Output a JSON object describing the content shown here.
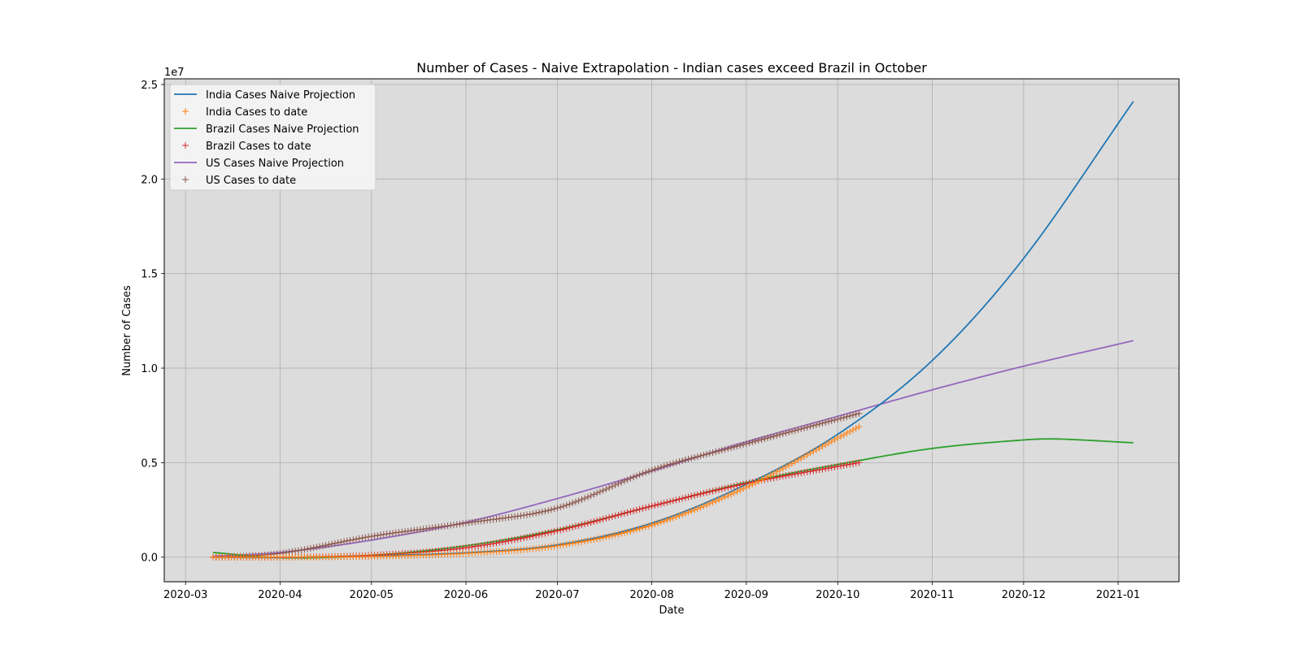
{
  "chart_data": {
    "type": "line",
    "title": "Number of Cases - Naive Extrapolation - Indian cases exceed Brazil in October",
    "xlabel": "Date",
    "ylabel": "Number of Cases",
    "y_offset_text": "1e7",
    "xlim": [
      "2020-02-23",
      "2021-01-21"
    ],
    "ylim": [
      -0.13,
      2.53
    ],
    "x_ticks": [
      {
        "date": "2020-03-01",
        "label": "2020-03"
      },
      {
        "date": "2020-04-01",
        "label": "2020-04"
      },
      {
        "date": "2020-05-01",
        "label": "2020-05"
      },
      {
        "date": "2020-06-01",
        "label": "2020-06"
      },
      {
        "date": "2020-07-01",
        "label": "2020-07"
      },
      {
        "date": "2020-08-01",
        "label": "2020-08"
      },
      {
        "date": "2020-09-01",
        "label": "2020-09"
      },
      {
        "date": "2020-10-01",
        "label": "2020-10"
      },
      {
        "date": "2020-11-01",
        "label": "2020-11"
      },
      {
        "date": "2020-12-01",
        "label": "2020-12"
      },
      {
        "date": "2021-01-01",
        "label": "2021-01"
      }
    ],
    "y_ticks": [
      {
        "value": 0.0,
        "label": "0.0"
      },
      {
        "value": 0.5,
        "label": "0.5"
      },
      {
        "value": 1.0,
        "label": "1.0"
      },
      {
        "value": 1.5,
        "label": "1.5"
      },
      {
        "value": 2.0,
        "label": "2.0"
      },
      {
        "value": 2.5,
        "label": "2.5"
      }
    ],
    "grid": true,
    "legend_position": "top-left",
    "background_color": "#dcdcdc",
    "series": [
      {
        "name": "India Cases Naive Projection",
        "kind": "line",
        "color": "#1f77b4",
        "points": [
          {
            "x": "2020-03-10",
            "y": 0.0
          },
          {
            "x": "2020-04-01",
            "y": -0.002
          },
          {
            "x": "2020-05-01",
            "y": 0.008
          },
          {
            "x": "2020-06-01",
            "y": 0.023
          },
          {
            "x": "2020-07-01",
            "y": 0.065
          },
          {
            "x": "2020-08-01",
            "y": 0.18
          },
          {
            "x": "2020-09-01",
            "y": 0.385
          },
          {
            "x": "2020-10-01",
            "y": 0.65
          },
          {
            "x": "2020-11-01",
            "y": 1.04
          },
          {
            "x": "2020-12-01",
            "y": 1.58
          },
          {
            "x": "2021-01-06",
            "y": 2.41
          }
        ]
      },
      {
        "name": "India Cases to date",
        "kind": "markers",
        "color": "#ff7f0e",
        "points": [
          {
            "x": "2020-03-10",
            "y": 0.0
          },
          {
            "x": "2020-04-01",
            "y": 0.0
          },
          {
            "x": "2020-05-01",
            "y": 0.004
          },
          {
            "x": "2020-06-01",
            "y": 0.02
          },
          {
            "x": "2020-07-01",
            "y": 0.06
          },
          {
            "x": "2020-08-01",
            "y": 0.17
          },
          {
            "x": "2020-09-01",
            "y": 0.37
          },
          {
            "x": "2020-10-01",
            "y": 0.63
          },
          {
            "x": "2020-10-08",
            "y": 0.69
          }
        ]
      },
      {
        "name": "Brazil Cases Naive Projection",
        "kind": "line",
        "color": "#2ca02c",
        "points": [
          {
            "x": "2020-03-10",
            "y": 0.025
          },
          {
            "x": "2020-04-01",
            "y": -0.003
          },
          {
            "x": "2020-05-01",
            "y": 0.01
          },
          {
            "x": "2020-06-01",
            "y": 0.06
          },
          {
            "x": "2020-07-01",
            "y": 0.145
          },
          {
            "x": "2020-08-01",
            "y": 0.27
          },
          {
            "x": "2020-09-01",
            "y": 0.395
          },
          {
            "x": "2020-10-01",
            "y": 0.49
          },
          {
            "x": "2020-11-01",
            "y": 0.575
          },
          {
            "x": "2020-12-01",
            "y": 0.62
          },
          {
            "x": "2020-12-12",
            "y": 0.625
          },
          {
            "x": "2021-01-06",
            "y": 0.605
          }
        ]
      },
      {
        "name": "Brazil Cases to date",
        "kind": "markers",
        "color": "#d62728",
        "points": [
          {
            "x": "2020-03-10",
            "y": 0.0
          },
          {
            "x": "2020-04-01",
            "y": 0.0
          },
          {
            "x": "2020-05-01",
            "y": 0.01
          },
          {
            "x": "2020-06-01",
            "y": 0.05
          },
          {
            "x": "2020-07-01",
            "y": 0.14
          },
          {
            "x": "2020-08-01",
            "y": 0.27
          },
          {
            "x": "2020-09-01",
            "y": 0.39
          },
          {
            "x": "2020-10-01",
            "y": 0.48
          },
          {
            "x": "2020-10-08",
            "y": 0.5
          }
        ]
      },
      {
        "name": "US Cases Naive Projection",
        "kind": "line",
        "color": "#9467bd",
        "points": [
          {
            "x": "2020-03-10",
            "y": 0.005
          },
          {
            "x": "2020-04-01",
            "y": 0.025
          },
          {
            "x": "2020-05-01",
            "y": 0.09
          },
          {
            "x": "2020-06-01",
            "y": 0.185
          },
          {
            "x": "2020-07-01",
            "y": 0.31
          },
          {
            "x": "2020-08-01",
            "y": 0.455
          },
          {
            "x": "2020-09-01",
            "y": 0.61
          },
          {
            "x": "2020-10-01",
            "y": 0.745
          },
          {
            "x": "2020-11-01",
            "y": 0.885
          },
          {
            "x": "2020-12-01",
            "y": 1.01
          },
          {
            "x": "2021-01-06",
            "y": 1.145
          }
        ]
      },
      {
        "name": "US Cases to date",
        "kind": "markers",
        "color": "#8c564b",
        "points": [
          {
            "x": "2020-03-10",
            "y": 0.0
          },
          {
            "x": "2020-04-01",
            "y": 0.02
          },
          {
            "x": "2020-05-01",
            "y": 0.11
          },
          {
            "x": "2020-06-01",
            "y": 0.18
          },
          {
            "x": "2020-07-01",
            "y": 0.26
          },
          {
            "x": "2020-08-01",
            "y": 0.46
          },
          {
            "x": "2020-09-01",
            "y": 0.6
          },
          {
            "x": "2020-10-01",
            "y": 0.73
          },
          {
            "x": "2020-10-08",
            "y": 0.76
          }
        ]
      }
    ]
  }
}
